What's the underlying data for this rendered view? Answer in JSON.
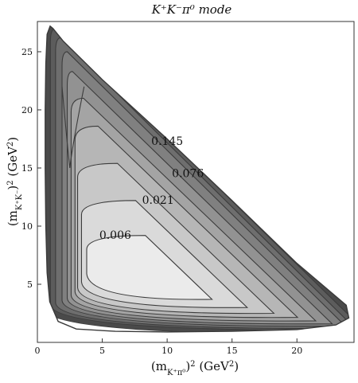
{
  "chart_data": {
    "type": "contour",
    "title": "K⁺K⁻π⁰ mode",
    "xlabel": "(m_{K⁺π⁰})² (GeV²)",
    "ylabel": "(m_{K⁺K⁻})² (GeV²)",
    "xlim": [
      0,
      24.4
    ],
    "ylim": [
      0,
      27.6
    ],
    "x_ticks": [
      0,
      5,
      10,
      15,
      20
    ],
    "y_ticks": [
      5,
      10,
      15,
      20,
      25
    ],
    "grid": false,
    "fill": "grayscale, darker = larger value",
    "region_boundary": [
      [
        0.98,
        27.2
      ],
      [
        0.75,
        26.5
      ],
      [
        0.65,
        24
      ],
      [
        0.6,
        20
      ],
      [
        0.6,
        15
      ],
      [
        0.65,
        10
      ],
      [
        0.75,
        6
      ],
      [
        0.95,
        3.5
      ],
      [
        1.6,
        1.8
      ],
      [
        3,
        1.15
      ],
      [
        6,
        0.95
      ],
      [
        10,
        0.9
      ],
      [
        15,
        0.95
      ],
      [
        20,
        1.1
      ],
      [
        23,
        1.5
      ],
      [
        24,
        2.1
      ],
      [
        23.8,
        3.2
      ],
      [
        20,
        6.8
      ],
      [
        15,
        12.2
      ],
      [
        10,
        17.5
      ],
      [
        5,
        22.6
      ],
      [
        2,
        25.9
      ],
      [
        1.2,
        27.0
      ]
    ],
    "contour_levels": [
      {
        "label": "0.006",
        "x": 6.0,
        "y": 8.9
      },
      {
        "label": "0.021",
        "x": 9.3,
        "y": 11.9
      },
      {
        "label": "0.076",
        "x": 11.6,
        "y": 14.2
      },
      {
        "label": "0.145",
        "x": 10.0,
        "y": 17.0
      }
    ]
  }
}
